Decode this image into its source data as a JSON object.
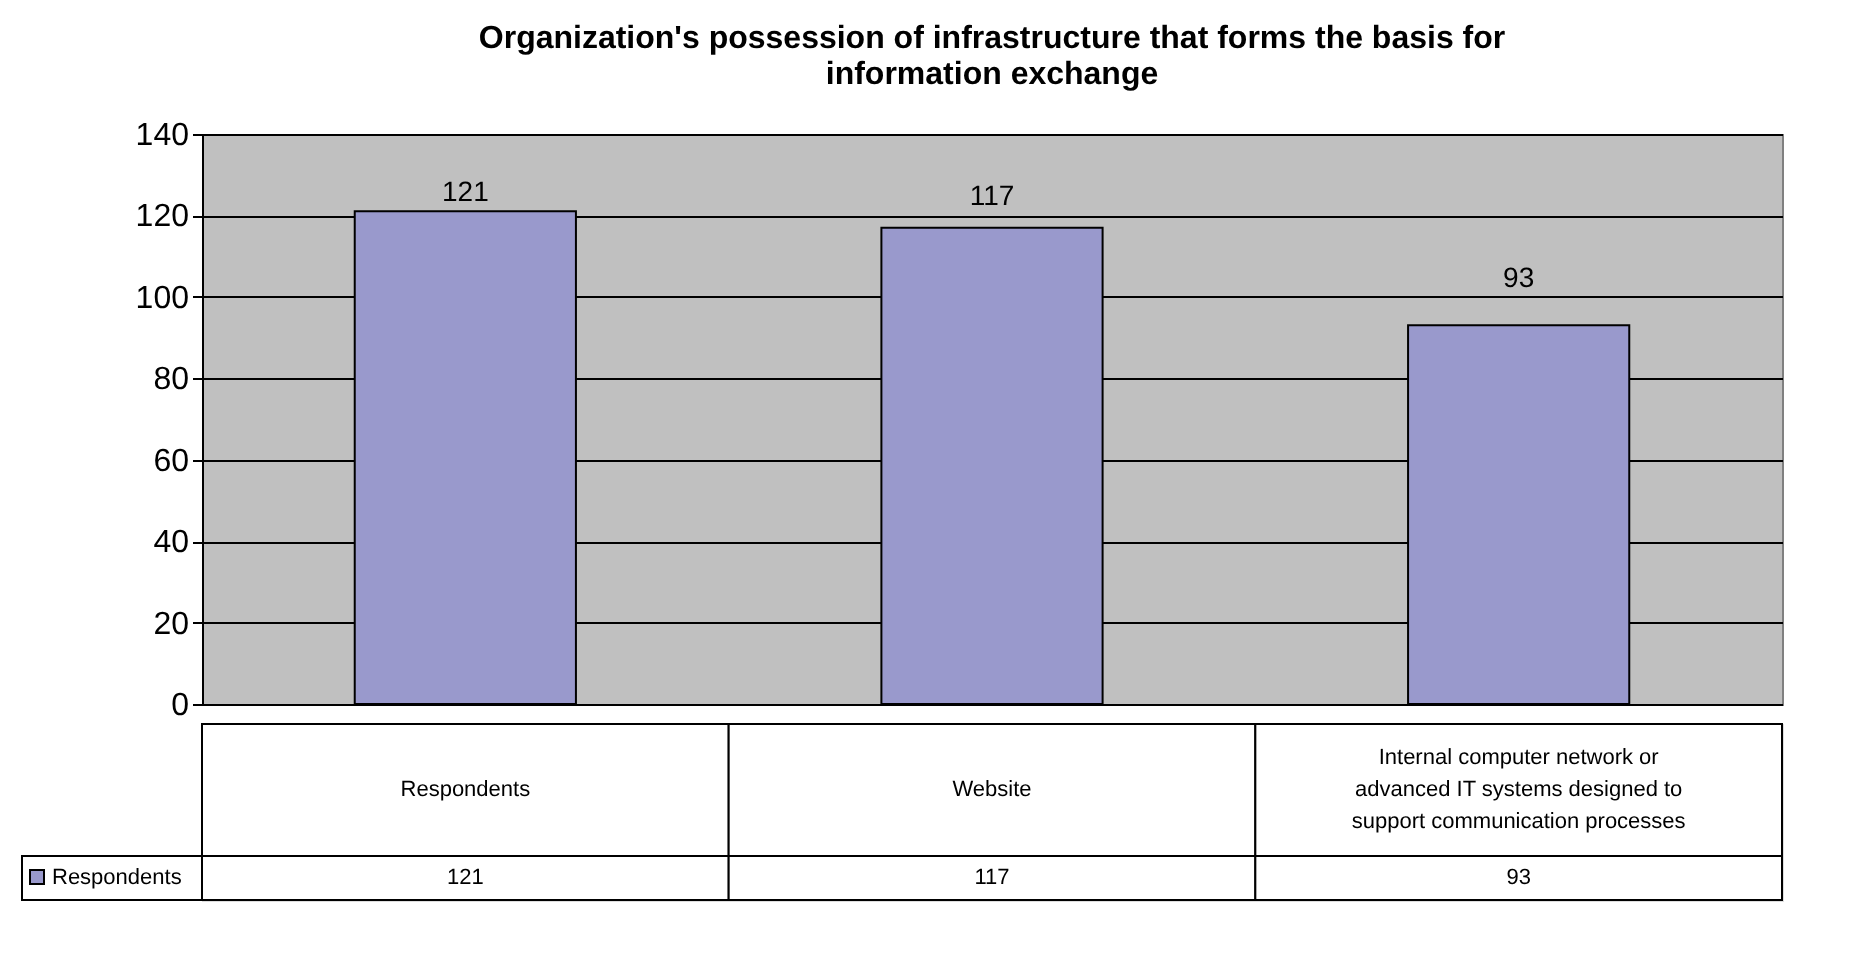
{
  "chart_data": {
    "type": "bar",
    "title": "Organization's possession of infrastructure that forms the basis for information exchange",
    "categories": [
      "Respondents",
      "Website",
      "Internal computer network or advanced IT systems designed to support communication processes"
    ],
    "series": [
      {
        "name": "Respondents",
        "color": "#9999cc",
        "values": [
          121,
          117,
          93
        ]
      }
    ],
    "value_labels": [
      "121",
      "117",
      "93"
    ],
    "ylim": [
      0,
      140
    ],
    "yticks": [
      0,
      20,
      40,
      60,
      80,
      100,
      120,
      140
    ],
    "grid": "y",
    "data_labels": true,
    "legend": "bottom left"
  }
}
